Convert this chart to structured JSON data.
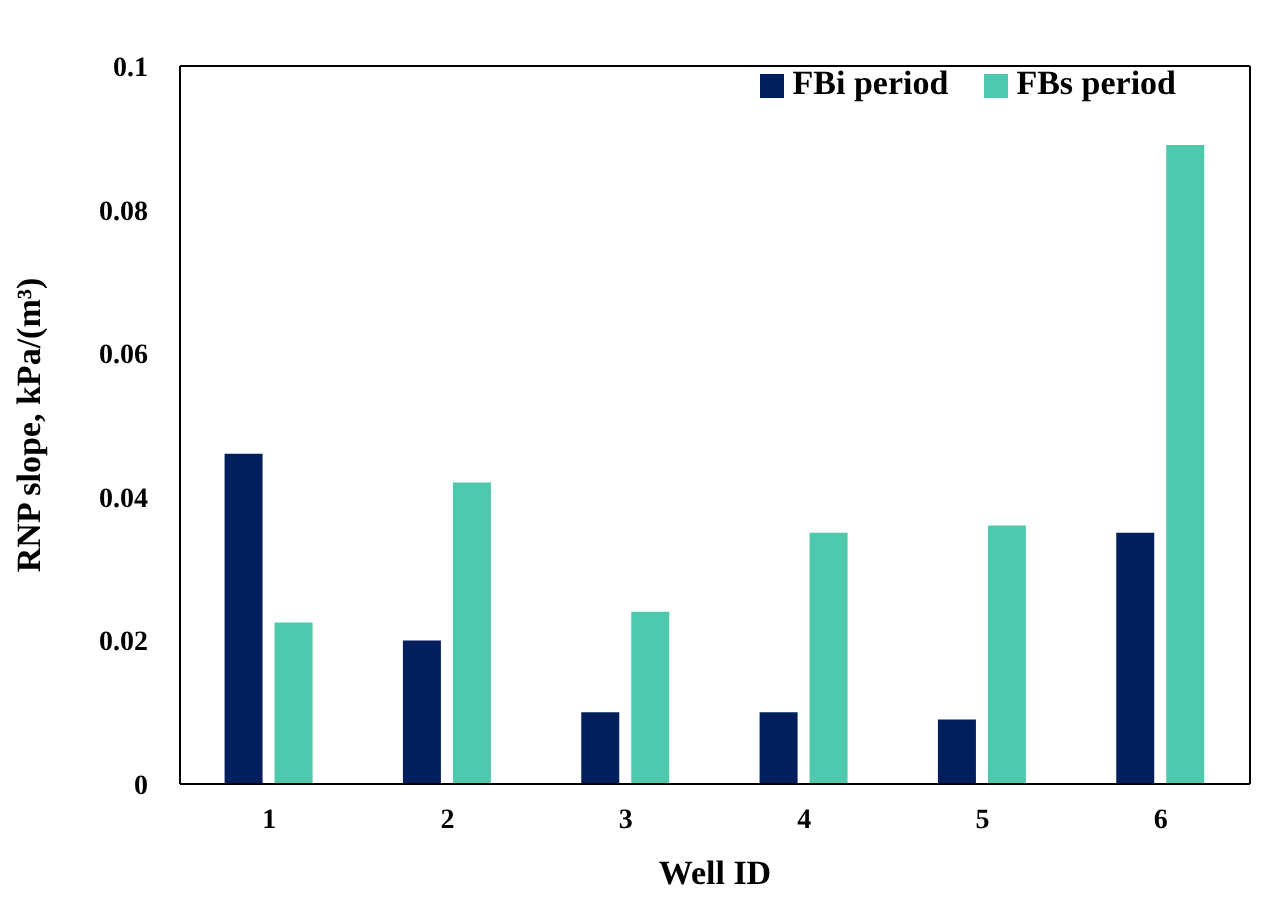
{
  "chart_data": {
    "type": "bar",
    "xlabel": "Well ID",
    "ylabel": "RNP slope, kPa/(m³)",
    "categories": [
      "1",
      "2",
      "3",
      "4",
      "5",
      "6"
    ],
    "series": [
      {
        "name": "FBi period",
        "color": "#001f5c",
        "values": [
          0.046,
          0.02,
          0.01,
          0.01,
          0.009,
          0.035
        ]
      },
      {
        "name": "FBs period",
        "color": "#4fc9ae",
        "values": [
          0.0225,
          0.042,
          0.024,
          0.035,
          0.036,
          0.089
        ]
      }
    ],
    "ylim": [
      0,
      0.1
    ],
    "yticks": [
      0,
      0.02,
      0.04,
      0.06,
      0.08,
      0.1
    ],
    "grid": false,
    "legend": "top right"
  }
}
